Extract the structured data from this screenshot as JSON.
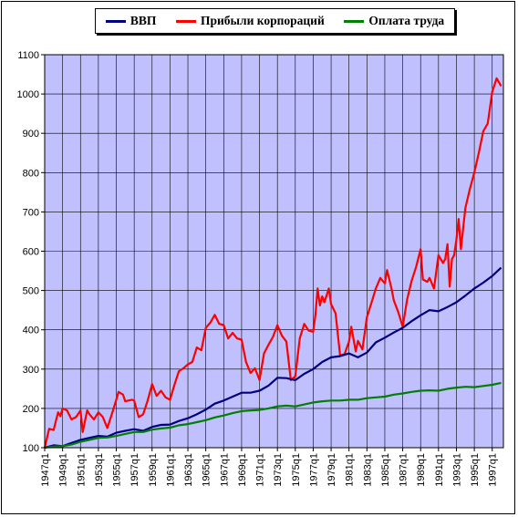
{
  "chart_data": {
    "type": "line",
    "title": "",
    "xlabel": "",
    "ylabel": "",
    "ylim": [
      100,
      1100
    ],
    "yticks": [
      100,
      200,
      300,
      400,
      500,
      600,
      700,
      800,
      900,
      1000,
      1100
    ],
    "x_ticks": [
      "1947q1",
      "1949q1",
      "1951q1",
      "1953q1",
      "1955q1",
      "1957q1",
      "1959q1",
      "1961q1",
      "1963q1",
      "1965q1",
      "1967q1",
      "1969q1",
      "1971q1",
      "1973q1",
      "1975q1",
      "1977q1",
      "1979q1",
      "1981q1",
      "1983q1",
      "1985q1",
      "1987q1",
      "1989q1",
      "1991q1",
      "1993q1",
      "1995q1",
      "1997q1"
    ],
    "xlim": [
      1947.0,
      1998.25
    ],
    "grid": true,
    "legend_position": "top",
    "plot_background": "#c0c0ff",
    "series": [
      {
        "name": "ВВП",
        "color": "#000080",
        "points": [
          [
            1947.0,
            100
          ],
          [
            1948.0,
            106
          ],
          [
            1949.0,
            104
          ],
          [
            1950.0,
            112
          ],
          [
            1951.0,
            120
          ],
          [
            1952.0,
            125
          ],
          [
            1953.0,
            130
          ],
          [
            1954.0,
            128
          ],
          [
            1955.0,
            138
          ],
          [
            1956.0,
            143
          ],
          [
            1957.0,
            147
          ],
          [
            1958.0,
            143
          ],
          [
            1959.0,
            153
          ],
          [
            1960.0,
            158
          ],
          [
            1961.0,
            159
          ],
          [
            1962.0,
            168
          ],
          [
            1963.0,
            175
          ],
          [
            1964.0,
            185
          ],
          [
            1965.0,
            197
          ],
          [
            1966.0,
            212
          ],
          [
            1967.0,
            220
          ],
          [
            1968.0,
            230
          ],
          [
            1969.0,
            240
          ],
          [
            1970.0,
            240
          ],
          [
            1971.0,
            245
          ],
          [
            1972.0,
            258
          ],
          [
            1973.0,
            278
          ],
          [
            1974.0,
            277
          ],
          [
            1975.0,
            272
          ],
          [
            1976.0,
            288
          ],
          [
            1977.0,
            300
          ],
          [
            1978.0,
            318
          ],
          [
            1979.0,
            330
          ],
          [
            1980.0,
            333
          ],
          [
            1981.0,
            340
          ],
          [
            1982.0,
            330
          ],
          [
            1983.0,
            342
          ],
          [
            1984.0,
            368
          ],
          [
            1985.0,
            380
          ],
          [
            1986.0,
            393
          ],
          [
            1987.0,
            405
          ],
          [
            1988.0,
            422
          ],
          [
            1989.0,
            437
          ],
          [
            1990.0,
            450
          ],
          [
            1991.0,
            447
          ],
          [
            1992.0,
            458
          ],
          [
            1993.0,
            470
          ],
          [
            1994.0,
            487
          ],
          [
            1995.0,
            505
          ],
          [
            1996.0,
            520
          ],
          [
            1997.0,
            537
          ],
          [
            1998.0,
            558
          ]
        ]
      },
      {
        "name": "Прибыли корпораций",
        "color": "#ff0000",
        "points": [
          [
            1947.0,
            100
          ],
          [
            1947.5,
            148
          ],
          [
            1948.0,
            145
          ],
          [
            1948.5,
            190
          ],
          [
            1948.75,
            180
          ],
          [
            1949.0,
            200
          ],
          [
            1949.5,
            195
          ],
          [
            1950.0,
            172
          ],
          [
            1950.5,
            178
          ],
          [
            1951.0,
            195
          ],
          [
            1951.25,
            140
          ],
          [
            1951.75,
            195
          ],
          [
            1952.0,
            185
          ],
          [
            1952.5,
            172
          ],
          [
            1953.0,
            190
          ],
          [
            1953.5,
            178
          ],
          [
            1954.0,
            150
          ],
          [
            1954.5,
            185
          ],
          [
            1955.0,
            222
          ],
          [
            1955.25,
            242
          ],
          [
            1955.75,
            235
          ],
          [
            1956.0,
            218
          ],
          [
            1956.75,
            222
          ],
          [
            1957.0,
            220
          ],
          [
            1957.5,
            178
          ],
          [
            1958.0,
            185
          ],
          [
            1958.5,
            220
          ],
          [
            1959.0,
            262
          ],
          [
            1959.5,
            232
          ],
          [
            1960.0,
            245
          ],
          [
            1960.5,
            228
          ],
          [
            1961.0,
            222
          ],
          [
            1961.5,
            260
          ],
          [
            1962.0,
            295
          ],
          [
            1962.5,
            302
          ],
          [
            1963.0,
            312
          ],
          [
            1963.5,
            318
          ],
          [
            1964.0,
            355
          ],
          [
            1964.5,
            348
          ],
          [
            1965.0,
            405
          ],
          [
            1965.5,
            418
          ],
          [
            1966.0,
            438
          ],
          [
            1966.5,
            415
          ],
          [
            1967.0,
            412
          ],
          [
            1967.5,
            378
          ],
          [
            1968.0,
            392
          ],
          [
            1968.5,
            378
          ],
          [
            1969.0,
            375
          ],
          [
            1969.5,
            318
          ],
          [
            1970.0,
            290
          ],
          [
            1970.5,
            302
          ],
          [
            1971.0,
            272
          ],
          [
            1971.5,
            340
          ],
          [
            1972.0,
            362
          ],
          [
            1972.5,
            382
          ],
          [
            1973.0,
            412
          ],
          [
            1973.5,
            385
          ],
          [
            1974.0,
            370
          ],
          [
            1974.5,
            272
          ],
          [
            1975.0,
            282
          ],
          [
            1975.5,
            378
          ],
          [
            1976.0,
            415
          ],
          [
            1976.5,
            398
          ],
          [
            1977.0,
            395
          ],
          [
            1977.25,
            438
          ],
          [
            1977.5,
            505
          ],
          [
            1977.75,
            462
          ],
          [
            1978.0,
            485
          ],
          [
            1978.25,
            470
          ],
          [
            1978.75,
            505
          ],
          [
            1979.0,
            465
          ],
          [
            1979.5,
            442
          ],
          [
            1980.0,
            335
          ],
          [
            1980.5,
            338
          ],
          [
            1981.0,
            370
          ],
          [
            1981.25,
            408
          ],
          [
            1981.75,
            345
          ],
          [
            1982.0,
            372
          ],
          [
            1982.5,
            350
          ],
          [
            1983.0,
            432
          ],
          [
            1983.5,
            468
          ],
          [
            1984.0,
            505
          ],
          [
            1984.5,
            532
          ],
          [
            1985.0,
            518
          ],
          [
            1985.25,
            552
          ],
          [
            1985.75,
            505
          ],
          [
            1986.0,
            475
          ],
          [
            1986.5,
            445
          ],
          [
            1987.0,
            408
          ],
          [
            1987.5,
            478
          ],
          [
            1988.0,
            525
          ],
          [
            1988.5,
            560
          ],
          [
            1989.0,
            605
          ],
          [
            1989.25,
            528
          ],
          [
            1989.75,
            522
          ],
          [
            1990.0,
            532
          ],
          [
            1990.5,
            505
          ],
          [
            1991.0,
            590
          ],
          [
            1991.5,
            570
          ],
          [
            1991.75,
            580
          ],
          [
            1992.0,
            618
          ],
          [
            1992.25,
            510
          ],
          [
            1992.5,
            580
          ],
          [
            1992.75,
            590
          ],
          [
            1993.0,
            630
          ],
          [
            1993.25,
            682
          ],
          [
            1993.5,
            605
          ],
          [
            1994.0,
            710
          ],
          [
            1994.5,
            758
          ],
          [
            1995.0,
            800
          ],
          [
            1995.5,
            850
          ],
          [
            1996.0,
            905
          ],
          [
            1996.5,
            925
          ],
          [
            1997.0,
            1005
          ],
          [
            1997.5,
            1040
          ],
          [
            1997.75,
            1030
          ],
          [
            1998.0,
            1020
          ]
        ]
      },
      {
        "name": "Оплата труда",
        "color": "#008000",
        "points": [
          [
            1947.0,
            100
          ],
          [
            1948.0,
            103
          ],
          [
            1949.0,
            104
          ],
          [
            1950.0,
            108
          ],
          [
            1951.0,
            115
          ],
          [
            1952.0,
            120
          ],
          [
            1953.0,
            125
          ],
          [
            1954.0,
            126
          ],
          [
            1955.0,
            130
          ],
          [
            1956.0,
            135
          ],
          [
            1957.0,
            140
          ],
          [
            1958.0,
            140
          ],
          [
            1959.0,
            146
          ],
          [
            1960.0,
            149
          ],
          [
            1961.0,
            151
          ],
          [
            1962.0,
            157
          ],
          [
            1963.0,
            160
          ],
          [
            1964.0,
            165
          ],
          [
            1965.0,
            170
          ],
          [
            1966.0,
            177
          ],
          [
            1967.0,
            182
          ],
          [
            1968.0,
            188
          ],
          [
            1969.0,
            193
          ],
          [
            1970.0,
            195
          ],
          [
            1971.0,
            196
          ],
          [
            1972.0,
            200
          ],
          [
            1973.0,
            205
          ],
          [
            1974.0,
            207
          ],
          [
            1975.0,
            205
          ],
          [
            1976.0,
            210
          ],
          [
            1977.0,
            215
          ],
          [
            1978.0,
            218
          ],
          [
            1979.0,
            220
          ],
          [
            1980.0,
            220
          ],
          [
            1981.0,
            222
          ],
          [
            1982.0,
            222
          ],
          [
            1983.0,
            226
          ],
          [
            1984.0,
            228
          ],
          [
            1985.0,
            230
          ],
          [
            1986.0,
            235
          ],
          [
            1987.0,
            238
          ],
          [
            1988.0,
            242
          ],
          [
            1989.0,
            245
          ],
          [
            1990.0,
            246
          ],
          [
            1991.0,
            245
          ],
          [
            1992.0,
            250
          ],
          [
            1993.0,
            253
          ],
          [
            1994.0,
            255
          ],
          [
            1995.0,
            254
          ],
          [
            1996.0,
            257
          ],
          [
            1997.0,
            260
          ],
          [
            1998.0,
            265
          ]
        ]
      }
    ]
  }
}
